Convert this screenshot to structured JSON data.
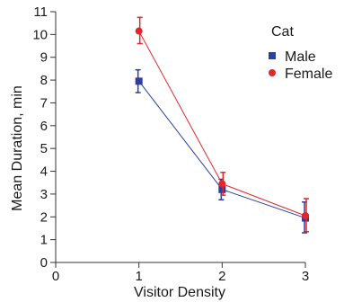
{
  "chart_data": {
    "type": "line",
    "title": "",
    "xlabel": "Visitor Density",
    "ylabel": "Mean Duration, min",
    "x_ticks": [
      0,
      1,
      2,
      3
    ],
    "y_ticks": [
      0,
      1,
      2,
      3,
      4,
      5,
      6,
      7,
      8,
      9,
      10,
      11
    ],
    "xlim": [
      0,
      3
    ],
    "ylim": [
      0,
      11
    ],
    "grid": false,
    "legend_title": "Cat",
    "legend_position": "top-right",
    "x": [
      1,
      2,
      3
    ],
    "series": [
      {
        "name": "Male",
        "color": "#2c3e9e",
        "marker": "square",
        "values": [
          7.95,
          3.2,
          1.95
        ],
        "error_low": [
          7.45,
          2.75,
          1.3
        ],
        "error_high": [
          8.45,
          3.65,
          2.65
        ]
      },
      {
        "name": "Female",
        "color": "#e3262b",
        "marker": "circle",
        "values": [
          10.15,
          3.45,
          2.05
        ],
        "error_low": [
          9.6,
          2.95,
          1.35
        ],
        "error_high": [
          10.75,
          3.95,
          2.8
        ]
      }
    ]
  }
}
